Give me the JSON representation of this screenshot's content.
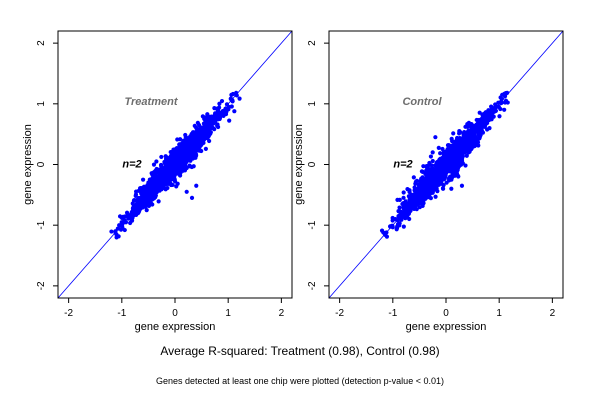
{
  "chart_data": [
    {
      "type": "scatter",
      "title": "Treatment",
      "annotation": "n=2",
      "xlabel": "gene expression",
      "ylabel": "gene expression",
      "xlim": [
        -2.2,
        2.2
      ],
      "ylim": [
        -2.2,
        2.2
      ],
      "xticks": [
        -2,
        -1,
        0,
        1,
        2
      ],
      "yticks": [
        -2,
        -1,
        0,
        1,
        2
      ],
      "reference_line": {
        "slope": 1,
        "intercept": 0
      },
      "grid": false,
      "point_color": "#0000ff",
      "cloud": {
        "n_points": 1400,
        "x_range": [
          -1.15,
          1.15
        ],
        "spread": 0.13,
        "seed": 11
      },
      "series": [
        {
          "x": [
            -1.12,
            -1.05,
            -0.95,
            -0.82,
            -0.7,
            -0.55,
            -0.42,
            -0.3,
            -0.18,
            -0.05,
            0.08,
            0.2,
            0.32,
            0.45,
            0.58,
            0.7,
            0.82,
            0.95,
            1.05,
            1.15,
            0.22,
            0.4,
            -0.6,
            0.32,
            0.55,
            -0.35
          ],
          "y": [
            -1.1,
            -1.0,
            -0.92,
            -0.82,
            -0.75,
            -0.55,
            -0.4,
            -0.28,
            -0.15,
            -0.02,
            0.1,
            0.22,
            0.32,
            0.45,
            0.55,
            0.72,
            0.82,
            0.92,
            1.08,
            1.18,
            -0.45,
            -0.35,
            -0.25,
            -0.55,
            0.75,
            0.05
          ]
        }
      ]
    },
    {
      "type": "scatter",
      "title": "Control",
      "annotation": "n=2",
      "xlabel": "gene expression",
      "ylabel": "gene expression",
      "xlim": [
        -2.2,
        2.2
      ],
      "ylim": [
        -2.2,
        2.2
      ],
      "xticks": [
        -2,
        -1,
        0,
        1,
        2
      ],
      "yticks": [
        -2,
        -1,
        0,
        1,
        2
      ],
      "reference_line": {
        "slope": 1,
        "intercept": 0
      },
      "grid": false,
      "point_color": "#0000ff",
      "cloud": {
        "n_points": 1400,
        "x_range": [
          -1.15,
          1.15
        ],
        "spread": 0.14,
        "seed": 29
      },
      "series": [
        {
          "x": [
            -1.12,
            -1.05,
            -0.95,
            -0.82,
            -0.7,
            -0.55,
            -0.42,
            -0.3,
            -0.18,
            -0.05,
            0.08,
            0.2,
            0.32,
            0.45,
            0.58,
            0.7,
            0.82,
            0.95,
            1.05,
            1.15,
            -0.2,
            0.1,
            0.3,
            -0.25,
            0.25
          ],
          "y": [
            -1.12,
            -1.02,
            -0.9,
            -0.8,
            -0.72,
            -0.55,
            -0.42,
            -0.3,
            -0.2,
            -0.05,
            0.08,
            0.2,
            0.3,
            0.45,
            0.55,
            0.7,
            0.85,
            0.95,
            1.08,
            1.18,
            0.45,
            -0.4,
            -0.35,
            0.2,
            0.55
          ]
        }
      ]
    }
  ],
  "footer": {
    "caption": "Average R-squared: Treatment (0.98), Control (0.98)",
    "note": "Genes detected at least one chip were plotted (detection p-value < 0.01)"
  }
}
